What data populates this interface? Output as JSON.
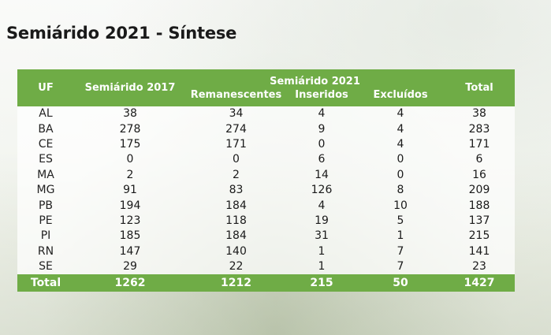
{
  "title": "Semiárido 2021 - Síntese",
  "table": {
    "headers": {
      "uf": "UF",
      "semiarido_2017": "Semiárido 2017",
      "group_2021": "Semiárido 2021",
      "remanescentes": "Remanescentes",
      "inseridos": "Inseridos",
      "excluidos": "Excluídos",
      "total": "Total"
    },
    "rows": [
      {
        "uf": "AL",
        "s2017": "38",
        "rem": "34",
        "ins": "4",
        "exc": "4",
        "total": "38"
      },
      {
        "uf": "BA",
        "s2017": "278",
        "rem": "274",
        "ins": "9",
        "exc": "4",
        "total": "283"
      },
      {
        "uf": "CE",
        "s2017": "175",
        "rem": "171",
        "ins": "0",
        "exc": "4",
        "total": "171"
      },
      {
        "uf": "ES",
        "s2017": "0",
        "rem": "0",
        "ins": "6",
        "exc": "0",
        "total": "6"
      },
      {
        "uf": "MA",
        "s2017": "2",
        "rem": "2",
        "ins": "14",
        "exc": "0",
        "total": "16"
      },
      {
        "uf": "MG",
        "s2017": "91",
        "rem": "83",
        "ins": "126",
        "exc": "8",
        "total": "209"
      },
      {
        "uf": "PB",
        "s2017": "194",
        "rem": "184",
        "ins": "4",
        "exc": "10",
        "total": "188"
      },
      {
        "uf": "PE",
        "s2017": "123",
        "rem": "118",
        "ins": "19",
        "exc": "5",
        "total": "137"
      },
      {
        "uf": "PI",
        "s2017": "185",
        "rem": "184",
        "ins": "31",
        "exc": "1",
        "total": "215"
      },
      {
        "uf": "RN",
        "s2017": "147",
        "rem": "140",
        "ins": "1",
        "exc": "7",
        "total": "141"
      },
      {
        "uf": "SE",
        "s2017": "29",
        "rem": "22",
        "ins": "1",
        "exc": "7",
        "total": "23"
      }
    ],
    "footer": {
      "label": "Total",
      "s2017": "1262",
      "rem": "1212",
      "ins": "215",
      "exc": "50",
      "total": "1427"
    }
  },
  "colors": {
    "header_green": "#6fac46",
    "header_text": "#ffffff"
  }
}
